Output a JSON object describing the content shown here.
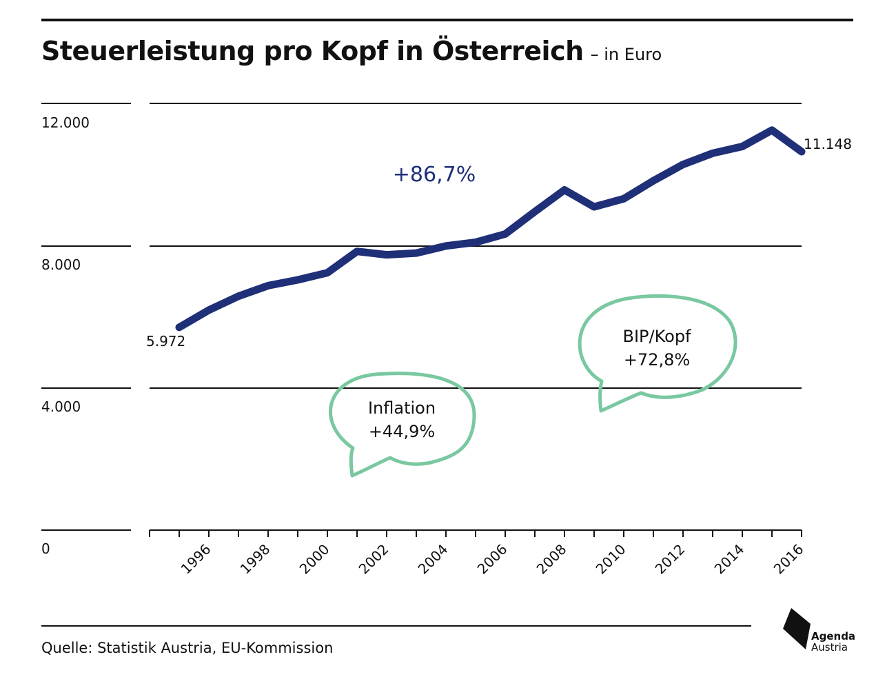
{
  "header": {
    "title": "Steuerleistung pro Kopf in Österreich",
    "subtitle": "– in Euro"
  },
  "annotations": {
    "growth": "+86,7%",
    "first_value": "5.972",
    "last_value": "11.148",
    "inflation_title": "Inflation",
    "inflation_value": "+44,9%",
    "gdp_title": "BIP/Kopf",
    "gdp_value": "+72,8%"
  },
  "footer": {
    "source": "Quelle: Statistik Austria, EU-Kommission",
    "logo_line1": "Agenda",
    "logo_line2": "Austria"
  },
  "colors": {
    "line": "#1f2f78",
    "bubble": "#79c8a0",
    "text": "#111111"
  },
  "chart_data": {
    "type": "line",
    "title": "Steuerleistung pro Kopf in Österreich",
    "subtitle": "– in Euro",
    "xlabel": "",
    "ylabel": "",
    "ylim": [
      0,
      12000
    ],
    "xlim": [
      1994,
      2016
    ],
    "y_ticks": [
      0,
      4000,
      8000,
      12000
    ],
    "y_tick_labels": [
      "0",
      "4.000",
      "8.000",
      "12.000"
    ],
    "x_ticks": [
      1996,
      1998,
      2000,
      2002,
      2004,
      2006,
      2008,
      2010,
      2012,
      2014,
      2016
    ],
    "grid": true,
    "legend": "none",
    "series": [
      {
        "x": [
          1995,
          1996,
          1997,
          1998,
          1999,
          2000,
          2001,
          2002,
          2003,
          2004,
          2005,
          2006,
          2007,
          2008,
          2009,
          2010,
          2011,
          2012,
          2013,
          2014,
          2015,
          2016
        ],
        "values": [
          5972,
          6480,
          6890,
          7200,
          7370,
          7580,
          8210,
          8110,
          8160,
          8370,
          8480,
          8720,
          9380,
          10020,
          9520,
          9760,
          10290,
          10770,
          11100,
          11300,
          11780,
          11148
        ]
      }
    ]
  }
}
